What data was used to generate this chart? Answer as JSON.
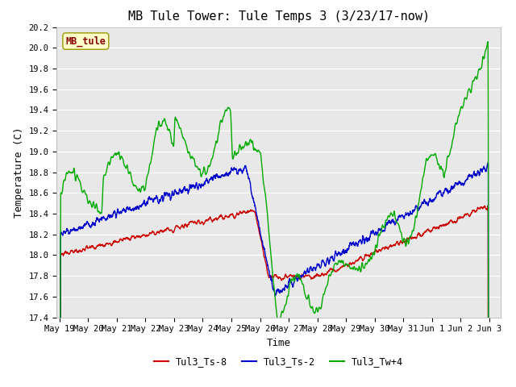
{
  "title": "MB Tule Tower: Tule Temps 3 (3/23/17-now)",
  "xlabel": "Time",
  "ylabel": "Temperature (C)",
  "ylim": [
    17.4,
    20.2
  ],
  "yticks": [
    17.4,
    17.6,
    17.8,
    18.0,
    18.2,
    18.4,
    18.6,
    18.8,
    19.0,
    19.2,
    19.4,
    19.6,
    19.8,
    20.0,
    20.2
  ],
  "xtick_labels": [
    "May 19",
    "May 20",
    "May 21",
    "May 22",
    "May 23",
    "May 24",
    "May 25",
    "May 26",
    "May 27",
    "May 28",
    "May 29",
    "May 30",
    "May 31",
    "Jun 1",
    "Jun 2",
    "Jun 3"
  ],
  "legend_labels": [
    "Tul3_Ts-8",
    "Tul3_Ts-2",
    "Tul3_Tw+4"
  ],
  "line_colors": [
    "#cc0000",
    "#0000cc",
    "#00aa00"
  ],
  "line_width": 1.0,
  "bg_color": "#e8e8e8",
  "grid_color": "#ffffff",
  "fig_bg": "#ffffff",
  "title_fontsize": 11,
  "axis_label_fontsize": 9,
  "tick_fontsize": 7.5,
  "watermark_text": "MB_tule",
  "watermark_bg": "#ffffcc",
  "watermark_fg": "#880000"
}
